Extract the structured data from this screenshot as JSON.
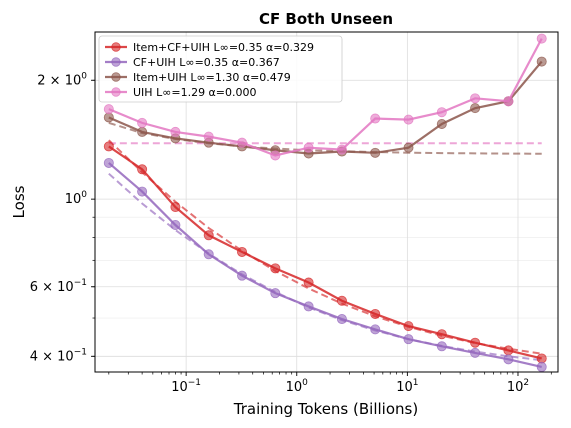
{
  "chart_data": {
    "type": "line",
    "title": "CF Both Unseen",
    "xlabel": "Training Tokens (Billions)",
    "ylabel": "Loss",
    "x_scale": "log",
    "y_scale": "log",
    "xlim": [
      0.015,
      230
    ],
    "ylim": [
      0.365,
      2.65
    ],
    "grid": true,
    "legend_position": "top-left",
    "x_ticks": [
      {
        "value": 0.1,
        "base": "10",
        "exp": "−1"
      },
      {
        "value": 1,
        "base": "10",
        "exp": "0"
      },
      {
        "value": 10,
        "base": "10",
        "exp": "1"
      },
      {
        "value": 100,
        "base": "10",
        "exp": "2"
      }
    ],
    "y_ticks": [
      {
        "value": 0.4,
        "mantissa": "4 × 10",
        "exp": "−1"
      },
      {
        "value": 0.6,
        "mantissa": "6 × 10",
        "exp": "−1"
      },
      {
        "value": 1.0,
        "mantissa": "10",
        "exp": "0"
      },
      {
        "value": 2.0,
        "mantissa": "2 × 10",
        "exp": "0"
      }
    ],
    "x": [
      0.02,
      0.04,
      0.08,
      0.16,
      0.32,
      0.64,
      1.28,
      2.56,
      5.12,
      10.24,
      20.48,
      40.96,
      81.92,
      163.84
    ],
    "series": [
      {
        "name": "Item+CF+UIH L∞=0.35 α=0.329",
        "color": "#d62728",
        "values": [
          1.36,
          1.19,
          0.955,
          0.81,
          0.735,
          0.668,
          0.615,
          0.553,
          0.512,
          0.477,
          0.455,
          0.433,
          0.414,
          0.395
        ],
        "fit": [
          1.41,
          1.17,
          0.985,
          0.845,
          0.74,
          0.658,
          0.594,
          0.544,
          0.505,
          0.475,
          0.451,
          0.432,
          0.418,
          0.406
        ]
      },
      {
        "name": "CF+UIH L∞=0.35 α=0.367",
        "color": "#9467bd",
        "values": [
          1.235,
          1.045,
          0.86,
          0.725,
          0.64,
          0.578,
          0.535,
          0.497,
          0.468,
          0.442,
          0.424,
          0.408,
          0.393,
          0.376
        ],
        "fit": [
          1.16,
          0.975,
          0.835,
          0.728,
          0.645,
          0.582,
          0.532,
          0.494,
          0.465,
          0.442,
          0.425,
          0.411,
          0.4,
          0.391
        ]
      },
      {
        "name": "Item+UIH L∞=1.30 α=0.479",
        "color": "#8c564b",
        "values": [
          1.61,
          1.48,
          1.425,
          1.39,
          1.36,
          1.33,
          1.305,
          1.32,
          1.31,
          1.35,
          1.55,
          1.7,
          1.77,
          2.23
        ],
        "fit": [
          1.56,
          1.47,
          1.42,
          1.385,
          1.36,
          1.343,
          1.33,
          1.322,
          1.316,
          1.311,
          1.308,
          1.306,
          1.304,
          1.303
        ]
      },
      {
        "name": "UIH L∞=1.29 α=0.000",
        "color": "#e377c2",
        "values": [
          1.69,
          1.56,
          1.48,
          1.44,
          1.39,
          1.29,
          1.35,
          1.335,
          1.6,
          1.59,
          1.66,
          1.8,
          1.77,
          2.55
        ],
        "fit": [
          1.385,
          1.385,
          1.385,
          1.385,
          1.385,
          1.385,
          1.385,
          1.385,
          1.385,
          1.385,
          1.385,
          1.385,
          1.385,
          1.385
        ]
      }
    ]
  }
}
